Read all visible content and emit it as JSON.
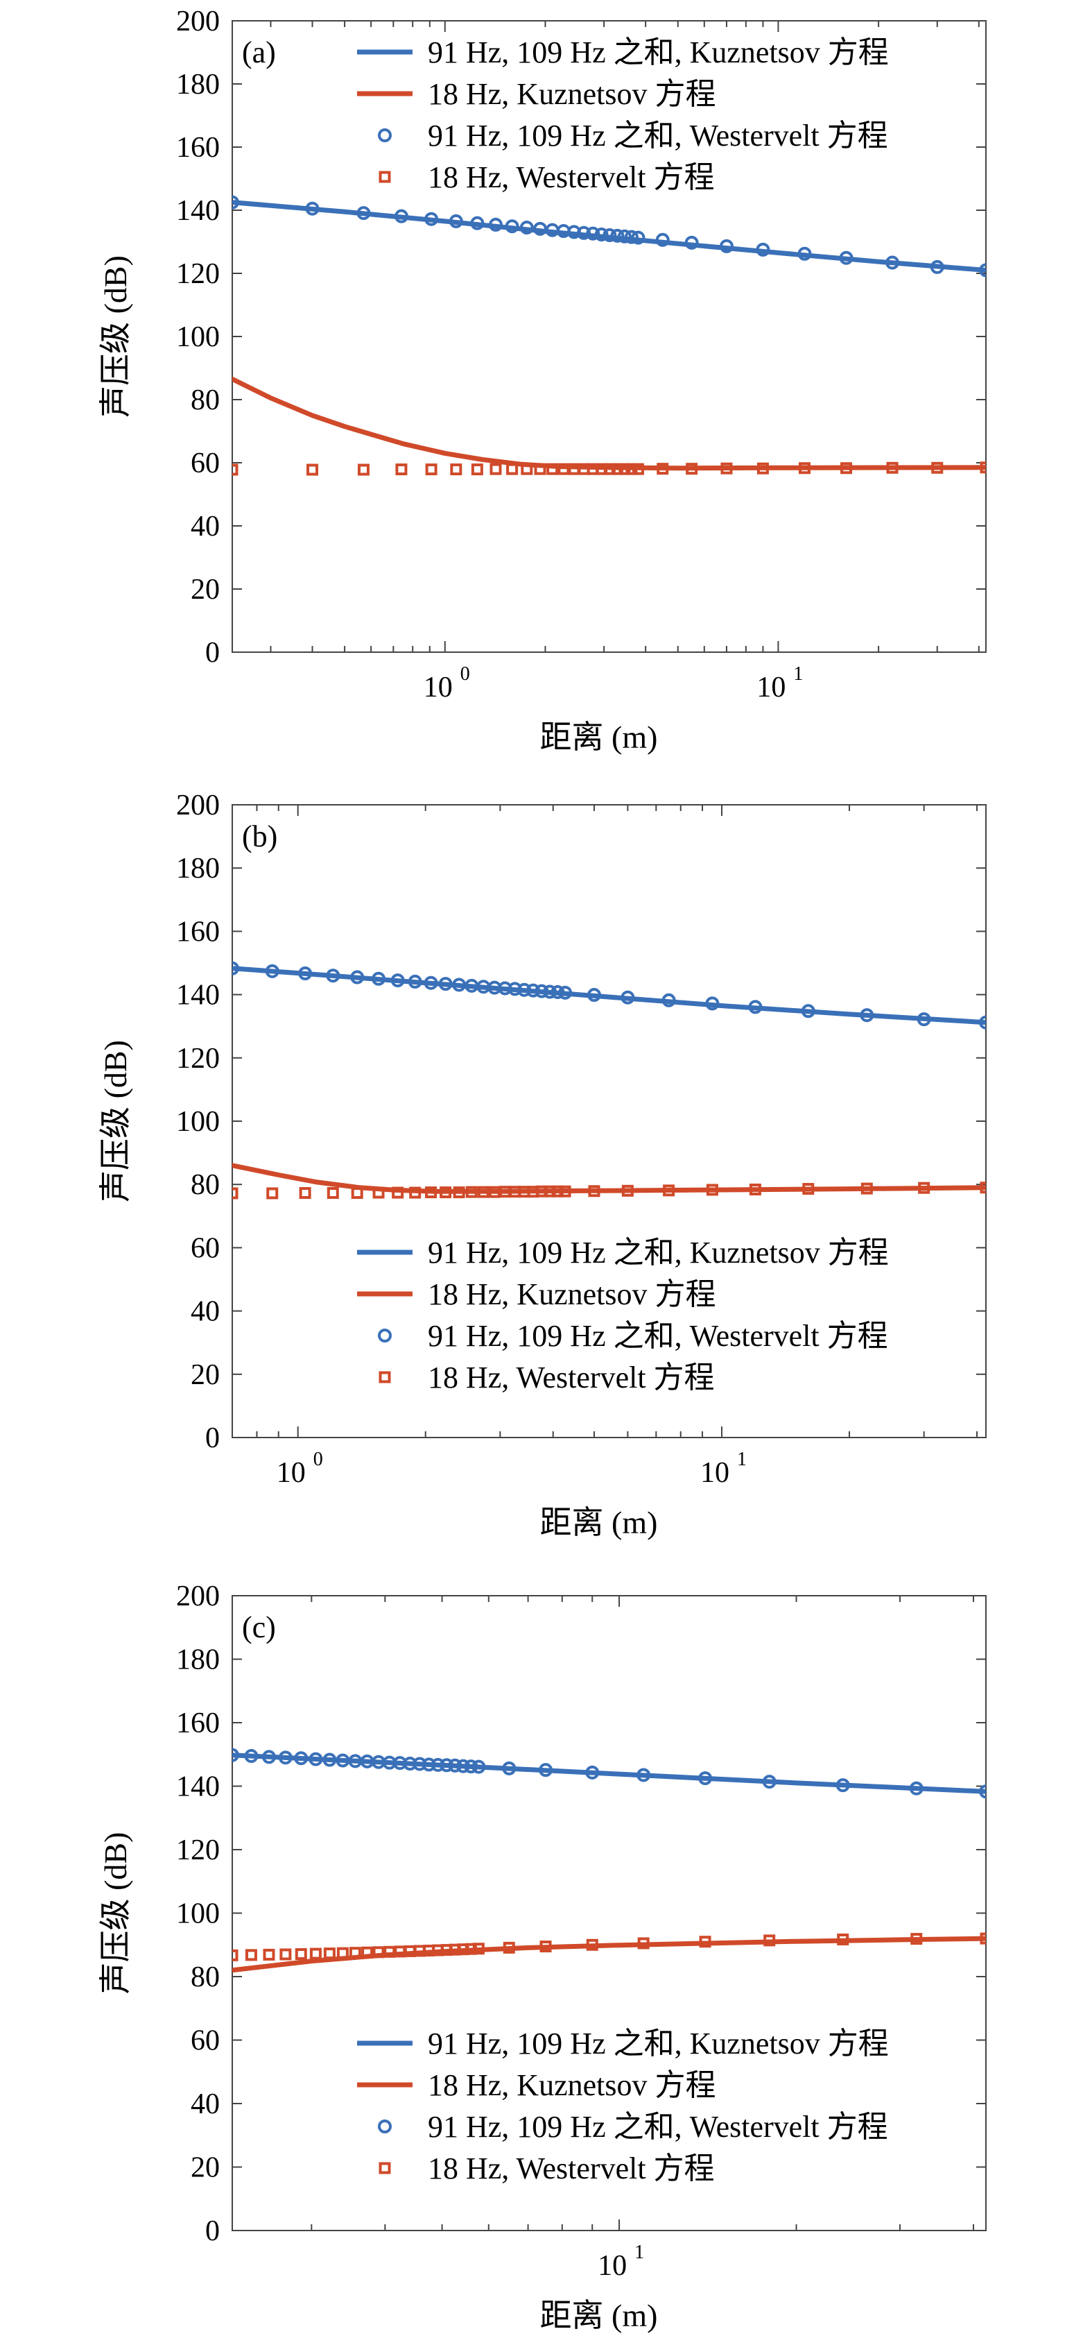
{
  "colors": {
    "blue": "#3a70b8",
    "orange": "#d04a2a"
  },
  "legend": [
    {
      "label": "91 Hz, 109 Hz 之和, Kuznetsov 方程",
      "style": "line",
      "color": "#3a70b8"
    },
    {
      "label": "18 Hz, Kuznetsov 方程",
      "style": "line",
      "color": "#d04a2a"
    },
    {
      "label": "91 Hz, 109 Hz 之和, Westervelt 方程",
      "style": "circle",
      "color": "#3a70b8"
    },
    {
      "label": "18 Hz, Westervelt 方程",
      "style": "square",
      "color": "#d04a2a"
    }
  ],
  "chart_data": [
    {
      "type": "line",
      "panel_label": "(a)",
      "xlabel": "距离 (m)",
      "ylabel": "声压级 (dB)",
      "xscale": "log",
      "xlim": [
        0.23,
        42
      ],
      "ylim": [
        0,
        200
      ],
      "yticks": [
        0,
        20,
        40,
        60,
        80,
        100,
        120,
        140,
        160,
        180,
        200
      ],
      "xticks": [
        {
          "value": 1,
          "base": "10",
          "exp": "0"
        },
        {
          "value": 10,
          "base": "10",
          "exp": "1"
        }
      ],
      "legend_position": "top-right",
      "series": [
        {
          "name": "91 Hz, 109 Hz 之和, Kuznetsov 方程",
          "style": "line",
          "color": "#3a70b8",
          "x": [
            0.23,
            0.5,
            1,
            2,
            5,
            10,
            20,
            42
          ],
          "y": [
            142.5,
            139.5,
            136.5,
            133.3,
            129.4,
            126.5,
            123.7,
            121
          ]
        },
        {
          "name": "18 Hz, Kuznetsov 方程",
          "style": "line",
          "color": "#d04a2a",
          "x": [
            0.23,
            0.3,
            0.4,
            0.5,
            0.6,
            0.75,
            1,
            1.3,
            1.7,
            2.2,
            3,
            5,
            10,
            42
          ],
          "y": [
            86.5,
            80.5,
            75,
            71.5,
            69,
            66,
            63,
            61,
            59.5,
            58.8,
            58.5,
            58.3,
            58.4,
            58.5
          ]
        },
        {
          "name": "91 Hz, 109 Hz 之和, Westervelt 方程",
          "style": "circle",
          "color": "#3a70b8",
          "x": [
            0.23,
            0.4,
            0.57,
            0.74,
            0.91,
            1.08,
            1.25,
            1.42,
            1.59,
            1.76,
            1.93,
            2.1,
            2.27,
            2.44,
            2.61,
            2.78,
            2.95,
            3.12,
            3.29,
            3.46,
            3.63,
            3.8,
            4.5,
            5.5,
            7,
            9,
            12,
            16,
            22,
            30,
            42
          ],
          "y": [
            142.5,
            140.5,
            139.1,
            138.1,
            137.2,
            136.5,
            135.9,
            135.4,
            134.9,
            134.5,
            134.1,
            133.7,
            133.4,
            133.1,
            132.8,
            132.6,
            132.3,
            132.1,
            131.9,
            131.7,
            131.5,
            131.3,
            130.6,
            129.7,
            128.6,
            127.5,
            126.2,
            124.9,
            123.4,
            122,
            121
          ]
        },
        {
          "name": "18 Hz, Westervelt 方程",
          "style": "square",
          "color": "#d04a2a",
          "x": [
            0.23,
            0.4,
            0.57,
            0.74,
            0.91,
            1.08,
            1.25,
            1.42,
            1.59,
            1.76,
            1.93,
            2.1,
            2.27,
            2.44,
            2.61,
            2.78,
            2.95,
            3.12,
            3.29,
            3.46,
            3.63,
            3.8,
            4.5,
            5.5,
            7,
            9,
            12,
            16,
            22,
            30,
            42
          ],
          "y": [
            57.8,
            57.8,
            57.8,
            57.9,
            57.9,
            57.9,
            57.9,
            58,
            58,
            58,
            58,
            58,
            58,
            58,
            58,
            58,
            58,
            58,
            58,
            58,
            58,
            58,
            58.1,
            58.1,
            58.2,
            58.2,
            58.3,
            58.3,
            58.4,
            58.4,
            58.5
          ]
        }
      ]
    },
    {
      "type": "line",
      "panel_label": "(b)",
      "xlabel": "距离 (m)",
      "ylabel": "声压级 (dB)",
      "xscale": "log",
      "xlim": [
        0.7,
        42
      ],
      "ylim": [
        0,
        200
      ],
      "yticks": [
        0,
        20,
        40,
        60,
        80,
        100,
        120,
        140,
        160,
        180,
        200
      ],
      "xticks": [
        {
          "value": 1,
          "base": "10",
          "exp": "0"
        },
        {
          "value": 10,
          "base": "10",
          "exp": "1"
        }
      ],
      "legend_position": "bottom-right",
      "series": [
        {
          "name": "91 Hz, 109 Hz 之和, Kuznetsov 方程",
          "style": "line",
          "color": "#3a70b8",
          "x": [
            0.7,
            1,
            2,
            5,
            10,
            20,
            42
          ],
          "y": [
            148.3,
            146.8,
            143.7,
            139.6,
            136.5,
            133.8,
            131.2
          ]
        },
        {
          "name": "18 Hz, Kuznetsov 方程",
          "style": "line",
          "color": "#d04a2a",
          "x": [
            0.7,
            0.9,
            1.1,
            1.4,
            1.7,
            2.1,
            3,
            5,
            10,
            20,
            42
          ],
          "y": [
            86,
            83,
            80.8,
            79,
            78.2,
            77.8,
            77.8,
            78,
            78.3,
            78.6,
            79
          ]
        },
        {
          "name": "91 Hz, 109 Hz 之和, Westervelt 方程",
          "style": "circle",
          "color": "#3a70b8",
          "x": [
            0.7,
            0.87,
            1.04,
            1.21,
            1.38,
            1.55,
            1.72,
            1.89,
            2.06,
            2.23,
            2.4,
            2.57,
            2.74,
            2.91,
            3.08,
            3.25,
            3.42,
            3.59,
            3.76,
            3.93,
            4.1,
            4.27,
            5,
            6,
            7.5,
            9.5,
            12,
            16,
            22,
            30,
            42
          ],
          "y": [
            148.3,
            147.4,
            146.7,
            146,
            145.5,
            145,
            144.5,
            144.1,
            143.7,
            143.4,
            143.1,
            142.8,
            142.5,
            142.2,
            142,
            141.8,
            141.5,
            141.3,
            141.1,
            140.9,
            140.8,
            140.6,
            139.9,
            139.1,
            138.2,
            137.2,
            136.1,
            134.8,
            133.5,
            132.2,
            131.2
          ]
        },
        {
          "name": "18 Hz, Westervelt 方程",
          "style": "square",
          "color": "#d04a2a",
          "x": [
            0.7,
            0.87,
            1.04,
            1.21,
            1.38,
            1.55,
            1.72,
            1.89,
            2.06,
            2.23,
            2.4,
            2.57,
            2.74,
            2.91,
            3.08,
            3.25,
            3.42,
            3.59,
            3.76,
            3.93,
            4.1,
            4.27,
            5,
            6,
            7.5,
            9.5,
            12,
            16,
            22,
            30,
            42
          ],
          "y": [
            77.2,
            77.2,
            77.3,
            77.3,
            77.3,
            77.4,
            77.4,
            77.4,
            77.5,
            77.5,
            77.5,
            77.6,
            77.6,
            77.6,
            77.7,
            77.7,
            77.7,
            77.7,
            77.8,
            77.8,
            77.8,
            77.8,
            77.9,
            78,
            78.1,
            78.3,
            78.4,
            78.6,
            78.7,
            78.9,
            79
          ]
        }
      ]
    },
    {
      "type": "line",
      "panel_label": "(c)",
      "xlabel": "距离 (m)",
      "ylabel": "声压级 (dB)",
      "xscale": "log",
      "xlim": [
        2.2,
        42
      ],
      "ylim": [
        0,
        200
      ],
      "yticks": [
        0,
        20,
        40,
        60,
        80,
        100,
        120,
        140,
        160,
        180,
        200
      ],
      "xticks": [
        {
          "value": 10,
          "base": "10",
          "exp": "1"
        }
      ],
      "legend_position": "bottom-right",
      "series": [
        {
          "name": "91 Hz, 109 Hz 之和, Kuznetsov 方程",
          "style": "line",
          "color": "#3a70b8",
          "x": [
            2.2,
            3,
            5,
            10,
            20,
            42
          ],
          "y": [
            149.8,
            148.6,
            146.6,
            143.8,
            141,
            138.3
          ]
        },
        {
          "name": "18 Hz, Kuznetsov 方程",
          "style": "line",
          "color": "#d04a2a",
          "x": [
            2.2,
            3,
            4,
            5,
            7,
            10,
            15,
            20,
            30,
            42
          ],
          "y": [
            82,
            84.9,
            86.8,
            87.9,
            89.1,
            89.9,
            90.6,
            91.1,
            91.6,
            92
          ]
        },
        {
          "name": "91 Hz, 109 Hz 之和, Westervelt 方程",
          "style": "circle",
          "color": "#3a70b8",
          "x": [
            2.2,
            2.37,
            2.54,
            2.71,
            2.88,
            3.05,
            3.22,
            3.39,
            3.56,
            3.73,
            3.9,
            4.07,
            4.24,
            4.41,
            4.58,
            4.75,
            4.92,
            5.09,
            5.26,
            5.43,
            5.6,
            5.77,
            6.5,
            7.5,
            9,
            11,
            14,
            18,
            24,
            32,
            42
          ],
          "y": [
            149.8,
            149.5,
            149.2,
            149,
            148.8,
            148.5,
            148.3,
            148.1,
            147.9,
            147.8,
            147.6,
            147.4,
            147.3,
            147.1,
            147,
            146.8,
            146.7,
            146.6,
            146.5,
            146.3,
            146.2,
            146.1,
            145.6,
            145.1,
            144.3,
            143.5,
            142.5,
            141.4,
            140.3,
            139.3,
            138.3
          ]
        },
        {
          "name": "18 Hz, Westervelt 方程",
          "style": "square",
          "color": "#d04a2a",
          "x": [
            2.2,
            2.37,
            2.54,
            2.71,
            2.88,
            3.05,
            3.22,
            3.39,
            3.56,
            3.73,
            3.9,
            4.07,
            4.24,
            4.41,
            4.58,
            4.75,
            4.92,
            5.09,
            5.26,
            5.43,
            5.6,
            5.77,
            6.5,
            7.5,
            9,
            11,
            14,
            18,
            24,
            32,
            42
          ],
          "y": [
            86.7,
            86.8,
            86.9,
            87,
            87.1,
            87.2,
            87.3,
            87.4,
            87.5,
            87.6,
            87.7,
            87.8,
            87.9,
            88,
            88.1,
            88.2,
            88.3,
            88.4,
            88.5,
            88.6,
            88.7,
            88.8,
            89.1,
            89.5,
            90,
            90.5,
            91,
            91.4,
            91.7,
            91.9,
            92
          ]
        }
      ]
    }
  ]
}
